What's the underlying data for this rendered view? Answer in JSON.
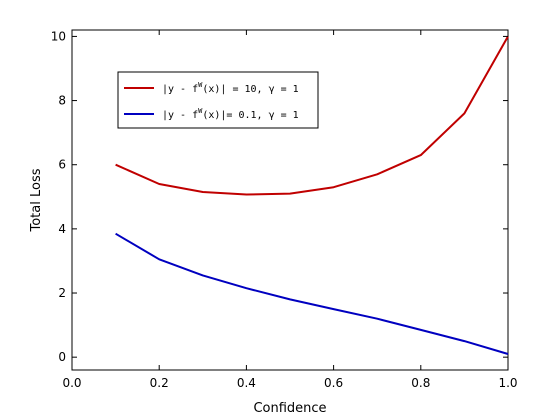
{
  "chart_data": {
    "type": "line",
    "xlabel": "Confidence",
    "ylabel": "Total Loss",
    "xlim": [
      0,
      1
    ],
    "ylim": [
      -0.4,
      10.2
    ],
    "x_ticks": [
      "0.0",
      "0.2",
      "0.4",
      "0.6",
      "0.8",
      "1.0"
    ],
    "y_ticks": [
      "0",
      "2",
      "4",
      "6",
      "8",
      "10"
    ],
    "x_tick_values": [
      0,
      0.2,
      0.4,
      0.6,
      0.8,
      1.0
    ],
    "y_tick_values": [
      0,
      2,
      4,
      6,
      8,
      10
    ],
    "grid": false,
    "legend_position": "upper-left",
    "series": [
      {
        "name": "|y - f^W(x)| = 10,  γ = 1",
        "label_parts": {
          "pre": "|y - f",
          "sup": "W",
          "post": "(x)| = 10,  γ = 1"
        },
        "color": "#c00000",
        "x": [
          0.1,
          0.2,
          0.3,
          0.4,
          0.5,
          0.6,
          0.7,
          0.8,
          0.9,
          1.0
        ],
        "y": [
          6.0,
          5.4,
          5.15,
          5.07,
          5.1,
          5.3,
          5.7,
          6.3,
          7.6,
          10.0
        ]
      },
      {
        "name": "|y - f^W(x)|= 0.1,  γ = 1",
        "label_parts": {
          "pre": "|y - f",
          "sup": "W",
          "post": "(x)|= 0.1,  γ = 1"
        },
        "color": "#0000c0",
        "x": [
          0.1,
          0.2,
          0.3,
          0.4,
          0.5,
          0.6,
          0.7,
          0.8,
          0.9,
          1.0
        ],
        "y": [
          3.85,
          3.05,
          2.55,
          2.15,
          1.8,
          1.5,
          1.2,
          0.85,
          0.5,
          0.1
        ]
      }
    ]
  }
}
